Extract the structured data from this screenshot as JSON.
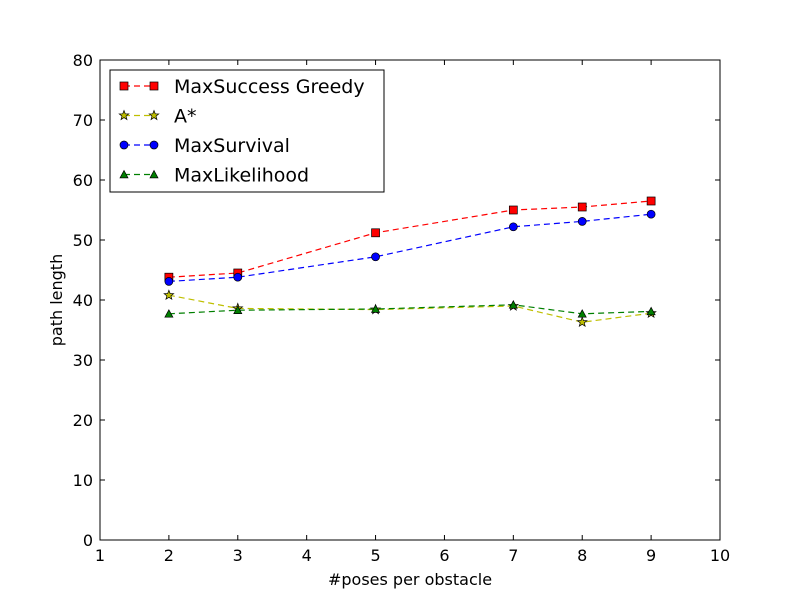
{
  "chart_data": {
    "type": "line",
    "title": "",
    "xlabel": "#poses per obstacle",
    "ylabel": "path length",
    "xlim": [
      1,
      10
    ],
    "ylim": [
      0,
      80
    ],
    "xticks": [
      1,
      2,
      3,
      4,
      5,
      6,
      7,
      8,
      9,
      10
    ],
    "yticks": [
      0,
      10,
      20,
      30,
      40,
      50,
      60,
      70,
      80
    ],
    "grid": false,
    "legend": "top-left",
    "x": [
      2,
      3,
      5,
      7,
      8,
      9
    ],
    "series": [
      {
        "name": "MaxSuccess Greedy",
        "color": "#ff0000",
        "marker": "square",
        "values": [
          43.8,
          44.5,
          51.2,
          55.0,
          55.5,
          56.5
        ]
      },
      {
        "name": "A*",
        "color": "#bfbf00",
        "marker": "star",
        "values": [
          40.8,
          38.6,
          38.4,
          39.0,
          36.3,
          37.8
        ]
      },
      {
        "name": "MaxSurvival",
        "color": "#0000ff",
        "marker": "circle",
        "values": [
          43.1,
          43.8,
          47.2,
          52.2,
          53.1,
          54.3
        ]
      },
      {
        "name": "MaxLikelihood",
        "color": "#007f00",
        "marker": "triangle",
        "values": [
          37.7,
          38.3,
          38.5,
          39.2,
          37.7,
          38.1
        ]
      }
    ]
  }
}
